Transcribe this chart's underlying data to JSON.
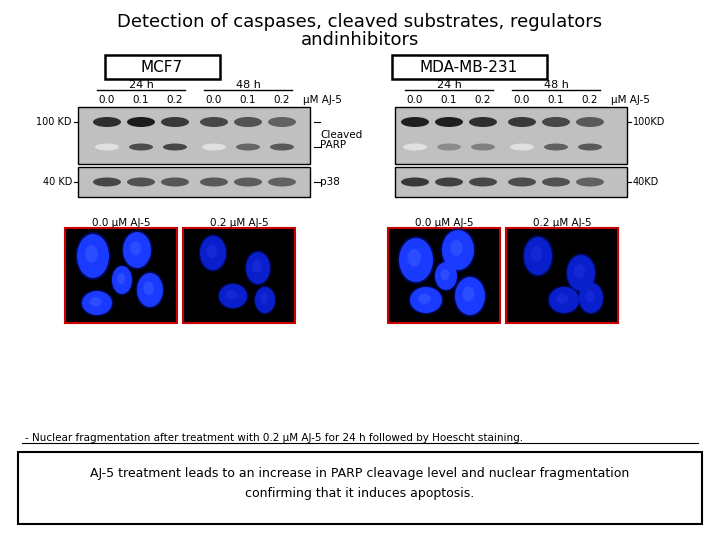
{
  "title_line1": "Detection of caspases, cleaved substrates, regulators",
  "title_line2": "andinhibitors",
  "mcf7_label": "MCF7",
  "mda_label": "MDA-MB-231",
  "conc_labels": [
    "0.0",
    "0.1",
    "0.2",
    "0.0",
    "0.1",
    "0.2"
  ],
  "conc_unit": "μM AJ-5",
  "footnote": "- Nuclear fragmentation after treatment with 0.2 μM AJ-5 for 24 h followed by Hoescht staining.",
  "conclusion_line1": "AJ-5 treatment leads to an increase in PARP cleavage level and nuclear fragmentation",
  "conclusion_line2": "confirming that it induces apoptosis.",
  "fluor_labels": [
    "0.0 μM AJ-5",
    "0.2 μM AJ-5",
    "0.0 μM AJ-5",
    "0.2 μM AJ-5"
  ],
  "bg_color": "#ffffff"
}
